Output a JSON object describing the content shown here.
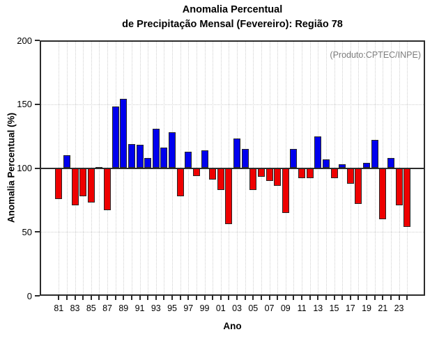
{
  "title": {
    "line1": "Anomalia Percentual",
    "line2": "de Precipitação Mensal (Fevereiro): Região 78"
  },
  "annotation": "(Produto:CPTEC/INPE)",
  "chart_data": {
    "type": "bar",
    "title": "Anomalia Percentual de Precipitação Mensal (Fevereiro): Região 78",
    "xlabel": "Ano",
    "ylabel": "Anomalia Percentual (%)",
    "ylim": [
      0,
      200
    ],
    "yticks": [
      0,
      50,
      100,
      150,
      200
    ],
    "baseline": 100,
    "grid_lines_y": [
      50,
      150
    ],
    "grid": "dotted light-gray; vertical line at every year, horizontal at 50 and 150; solid dark line at 100",
    "legend_position": "none",
    "categories": [
      "81",
      "82",
      "83",
      "84",
      "85",
      "86",
      "87",
      "88",
      "89",
      "90",
      "91",
      "92",
      "93",
      "94",
      "95",
      "96",
      "97",
      "98",
      "99",
      "00",
      "01",
      "02",
      "03",
      "04",
      "05",
      "06",
      "07",
      "08",
      "09",
      "10",
      "11",
      "12",
      "13",
      "14",
      "15",
      "16",
      "17",
      "18",
      "19",
      "20",
      "21",
      "22",
      "23",
      "24"
    ],
    "values": [
      76,
      110,
      71,
      78,
      73,
      101,
      67,
      148,
      154,
      119,
      118,
      108,
      131,
      116,
      128,
      78,
      113,
      94,
      114,
      91,
      83,
      56,
      123,
      115,
      83,
      93,
      90,
      86,
      65,
      115,
      92,
      92,
      125,
      107,
      92,
      103,
      88,
      72,
      104,
      122,
      60,
      108,
      71,
      54
    ],
    "xtick_labels": [
      "81",
      "83",
      "85",
      "87",
      "89",
      "91",
      "93",
      "95",
      "97",
      "99",
      "01",
      "03",
      "05",
      "07",
      "09",
      "11",
      "13",
      "15",
      "17",
      "19",
      "21",
      "23"
    ],
    "colors": {
      "above_baseline": "#0000ee",
      "below_baseline": "#ee0000",
      "axis": "#2b2b2b",
      "grid": "#cfcfcf",
      "annotation_text": "#7d7d7d",
      "background": "#ffffff"
    }
  }
}
